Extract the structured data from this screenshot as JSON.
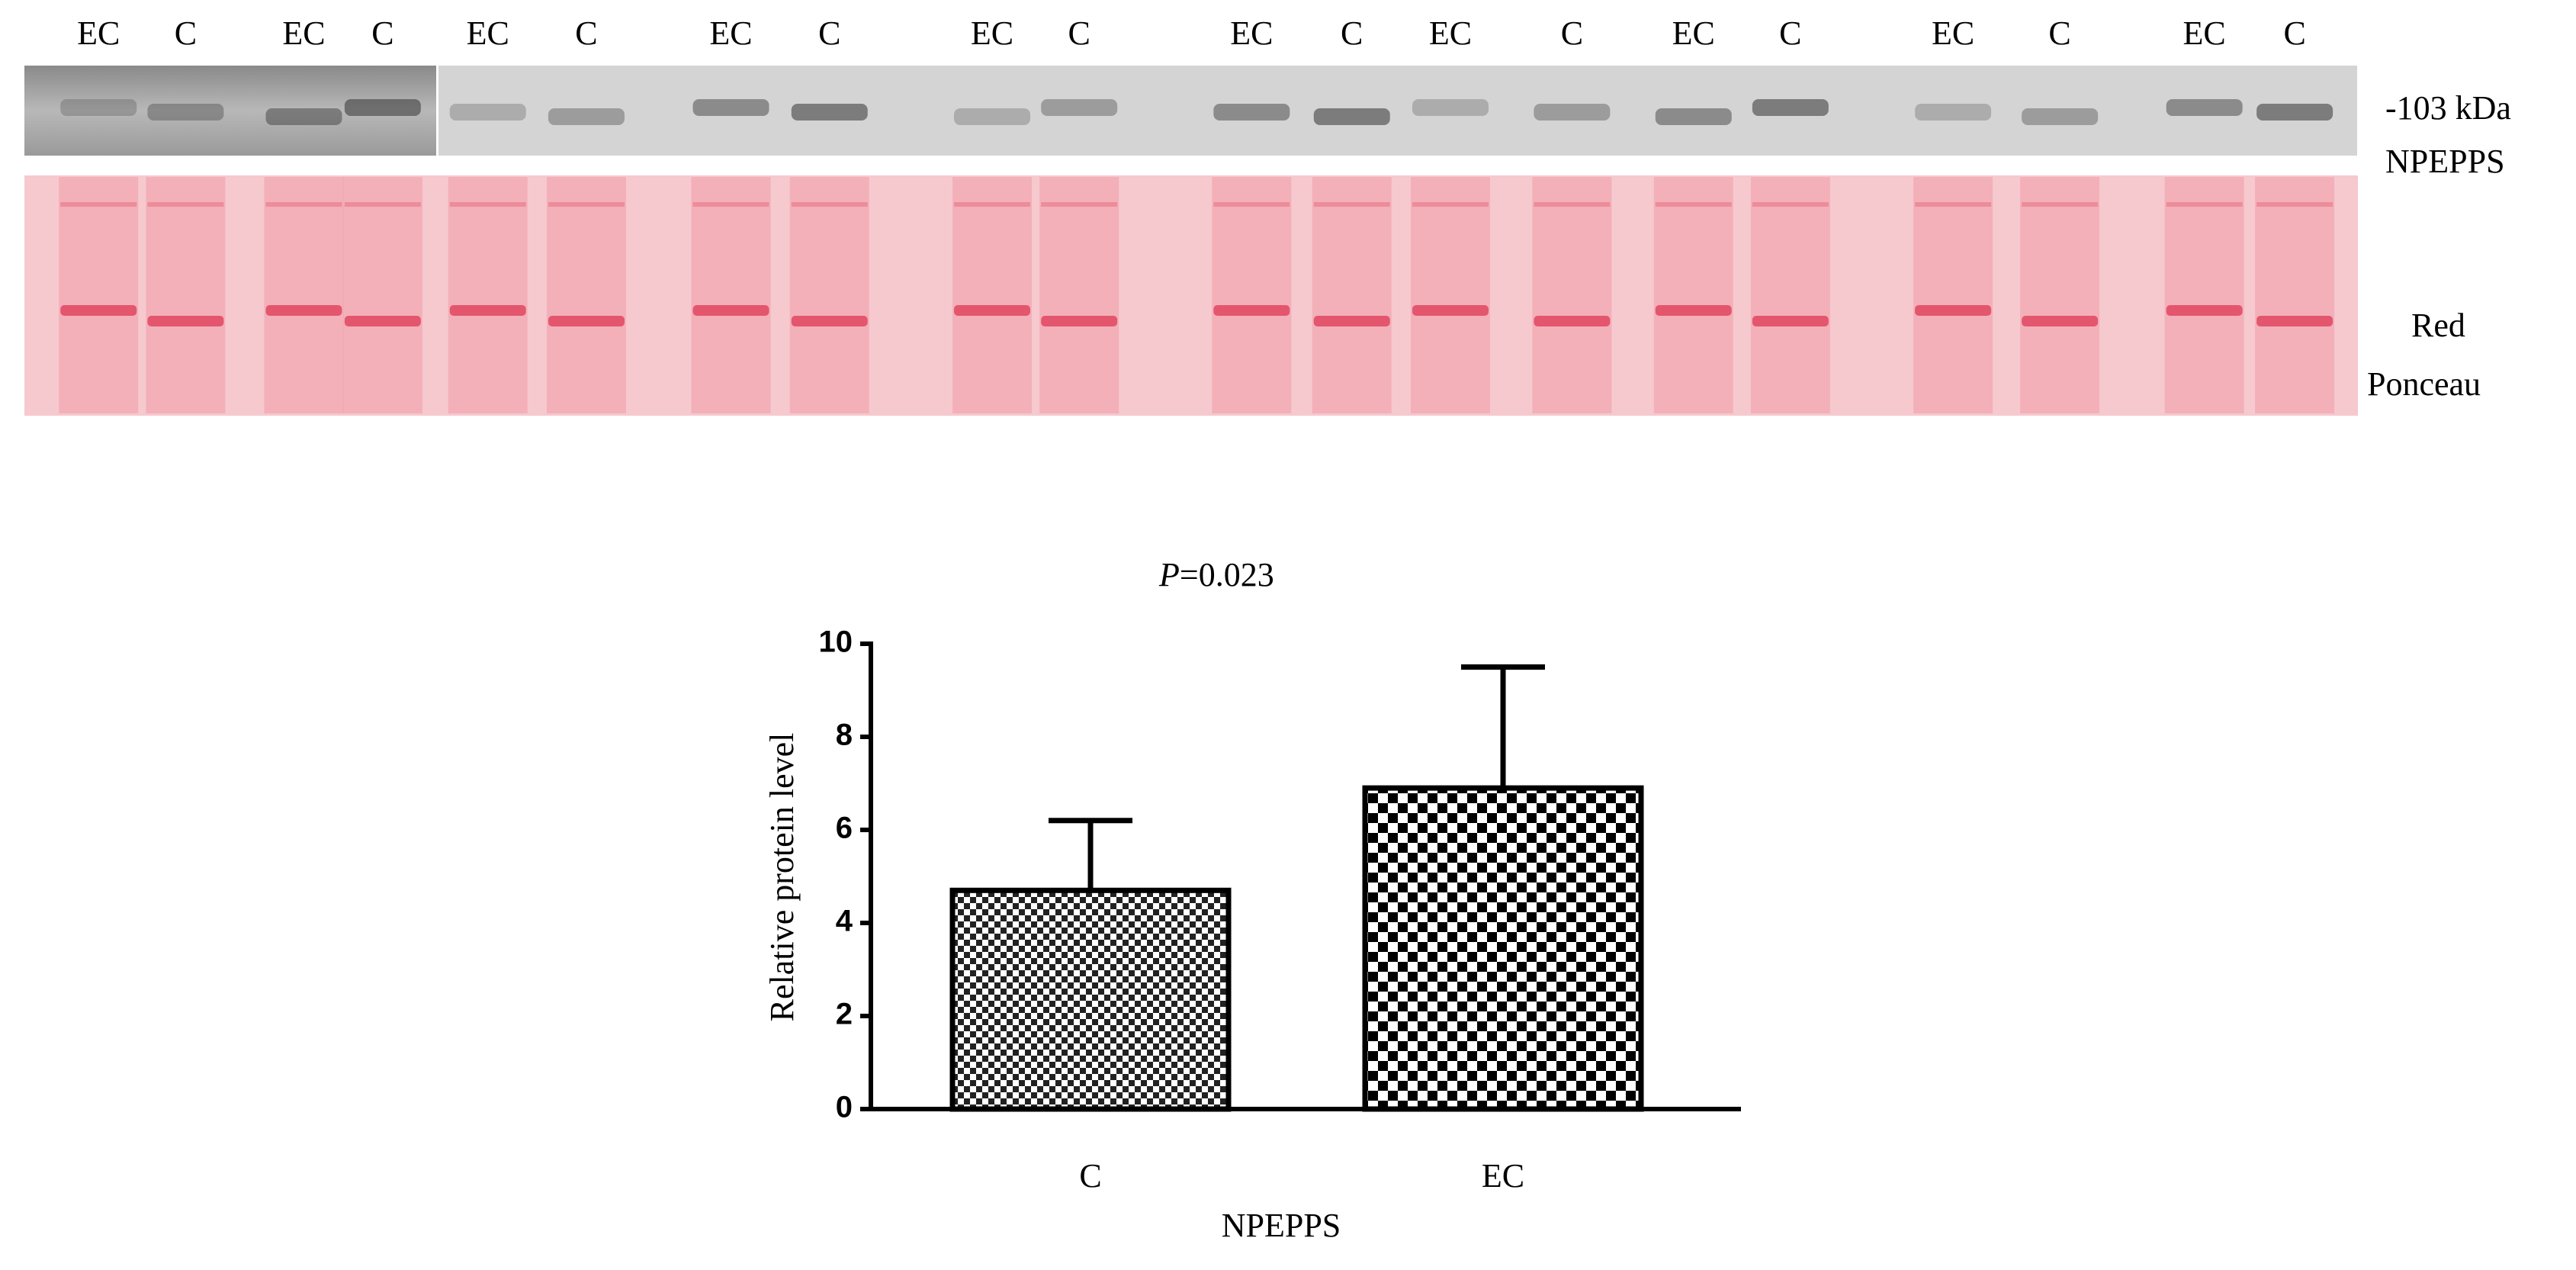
{
  "blot": {
    "lane_labels": [
      "EC",
      "C",
      "EC",
      "C",
      "EC",
      "C",
      "EC",
      "C",
      "EC",
      "C",
      "EC",
      "C",
      "EC",
      "C",
      "EC",
      "C",
      "EC",
      "C",
      "EC",
      "C"
    ],
    "band_label": "-103 kDa",
    "protein": "NPEPPS",
    "stain": [
      "Red",
      "Ponceau"
    ]
  },
  "chart_data": {
    "type": "bar",
    "annotation_italic": "P",
    "annotation": "=0.023",
    "categories": [
      "C",
      "EC"
    ],
    "values": [
      4.7,
      6.9
    ],
    "errors": [
      1.5,
      2.6
    ],
    "ylabel": "Relative protein level",
    "xlabel": "NPEPPS",
    "ylim": [
      0,
      10
    ],
    "yticks": [
      0,
      2,
      4,
      6,
      8,
      10
    ]
  }
}
